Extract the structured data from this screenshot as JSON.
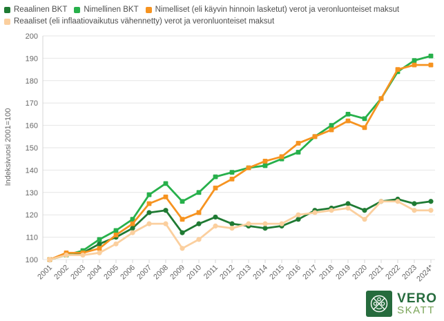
{
  "y_axis": {
    "title": "Indeksivuosi 2001=100",
    "min": 100,
    "max": 200,
    "tick_step": 10,
    "tick_labels": [
      "100",
      "110",
      "120",
      "130",
      "140",
      "150",
      "160",
      "170",
      "180",
      "190",
      "200"
    ]
  },
  "chart_data": {
    "type": "line",
    "title": "",
    "xlabel": "",
    "ylabel": "Indeksivuosi 2001=100",
    "ylim": [
      100,
      200
    ],
    "grid": true,
    "legend_position": "top-left",
    "categories": [
      "2001",
      "2002",
      "2003",
      "2004",
      "2005",
      "2006",
      "2007",
      "2008",
      "2009",
      "2010",
      "2011",
      "2012",
      "2013",
      "2014",
      "2015",
      "2016",
      "2017",
      "2018",
      "2019",
      "2020",
      "2021",
      "2022",
      "2023",
      "2024*"
    ],
    "series": [
      {
        "name": "Reaalinen BKT",
        "color": "#1f7a33",
        "marker": "circle",
        "values": [
          100,
          102,
          103,
          107,
          110,
          114,
          121,
          122,
          112,
          116,
          119,
          116,
          115,
          114,
          115,
          118,
          122,
          123,
          125,
          122,
          126,
          127,
          125,
          126
        ]
      },
      {
        "name": "Nimellinen BKT",
        "color": "#27b04b",
        "marker": "square",
        "values": [
          100,
          102,
          104,
          109,
          113,
          118,
          129,
          134,
          126,
          130,
          137,
          139,
          141,
          142,
          145,
          148,
          155,
          160,
          165,
          163,
          172,
          184,
          189,
          191
        ]
      },
      {
        "name": "Nimelliset (eli käyvin hinnoin lasketut) verot ja veronluonteiset maksut",
        "color": "#f69320",
        "marker": "square",
        "values": [
          100,
          103,
          103,
          105,
          111,
          116,
          125,
          128,
          118,
          121,
          132,
          136,
          141,
          144,
          146,
          152,
          155,
          158,
          162,
          159,
          172,
          185,
          187,
          187
        ]
      },
      {
        "name": "Reaaliset (eli inflaatiovaikutus vähennetty) verot ja veronluonteiset maksut",
        "color": "#fbcf9e",
        "marker": "circle",
        "values": [
          100,
          102,
          102,
          103,
          107,
          112,
          116,
          116,
          105,
          109,
          115,
          114,
          116,
          116,
          116,
          120,
          121,
          122,
          123,
          118,
          126,
          126,
          122,
          122
        ]
      }
    ],
    "colors": {
      "grid": "#e6e6e6",
      "axis": "#d4d4d4",
      "tick_text": "#666666"
    }
  },
  "logo": {
    "line1": "VERO",
    "line2": "SKATT"
  }
}
